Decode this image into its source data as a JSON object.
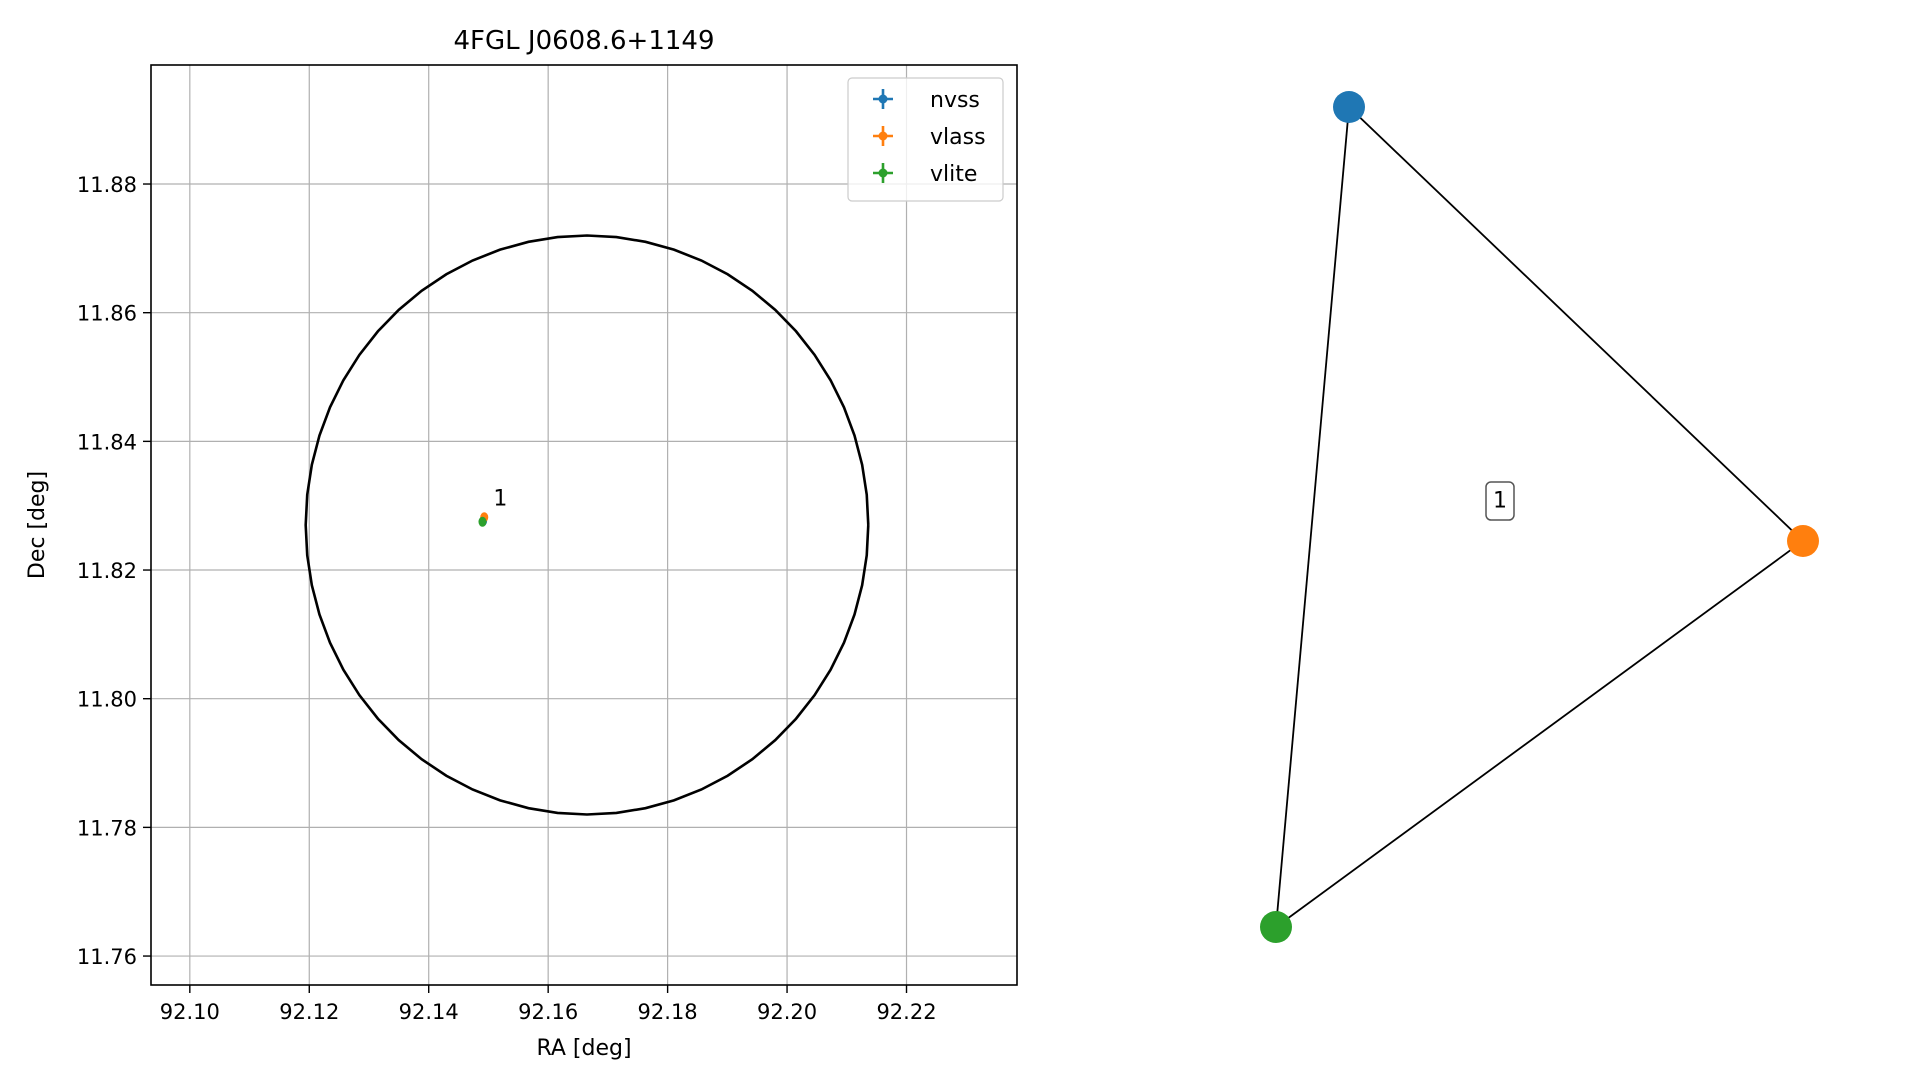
{
  "chart_data": [
    {
      "type": "scatter",
      "title": "4FGL J0608.6+1149",
      "xlabel": "RA [deg]",
      "ylabel": "Dec [deg]",
      "xlim": [
        92.0935,
        92.2385
      ],
      "ylim": [
        11.7555,
        11.8985
      ],
      "x_ticks": [
        92.1,
        92.12,
        92.14,
        92.16,
        92.18,
        92.2,
        92.22
      ],
      "x_tick_labels": [
        "92.10",
        "92.12",
        "92.14",
        "92.16",
        "92.18",
        "92.20",
        "92.22"
      ],
      "y_ticks": [
        11.76,
        11.78,
        11.8,
        11.82,
        11.84,
        11.86,
        11.88
      ],
      "y_tick_labels": [
        "11.76",
        "11.78",
        "11.80",
        "11.82",
        "11.84",
        "11.86",
        "11.88"
      ],
      "grid": true,
      "legend_position": "upper-right",
      "error_circle": {
        "center_ra": 92.1665,
        "center_dec": 11.827,
        "radius_ra": 0.0471,
        "radius_dec": 0.045,
        "color": "#000000"
      },
      "series": [
        {
          "name": "nvss",
          "color": "#1f77b4",
          "points": [
            {
              "ra": 92.1491,
              "dec": 11.8276
            }
          ]
        },
        {
          "name": "vlass",
          "color": "#ff7f0e",
          "points": [
            {
              "ra": 92.1493,
              "dec": 11.8282
            }
          ]
        },
        {
          "name": "vlite",
          "color": "#2ca02c",
          "points": [
            {
              "ra": 92.149,
              "dec": 11.8275
            }
          ]
        }
      ],
      "annotations": [
        {
          "text": "1",
          "ra": 92.1505,
          "dec": 11.8285
        }
      ]
    },
    {
      "type": "network",
      "nodes": [
        {
          "id": "nvss",
          "color": "#1f77b4"
        },
        {
          "id": "vlass",
          "color": "#ff7f0e"
        },
        {
          "id": "vlite",
          "color": "#2ca02c"
        }
      ],
      "edges": [
        [
          "nvss",
          "vlass"
        ],
        [
          "vlass",
          "vlite"
        ],
        [
          "vlite",
          "nvss"
        ]
      ],
      "group_label": "1"
    }
  ]
}
